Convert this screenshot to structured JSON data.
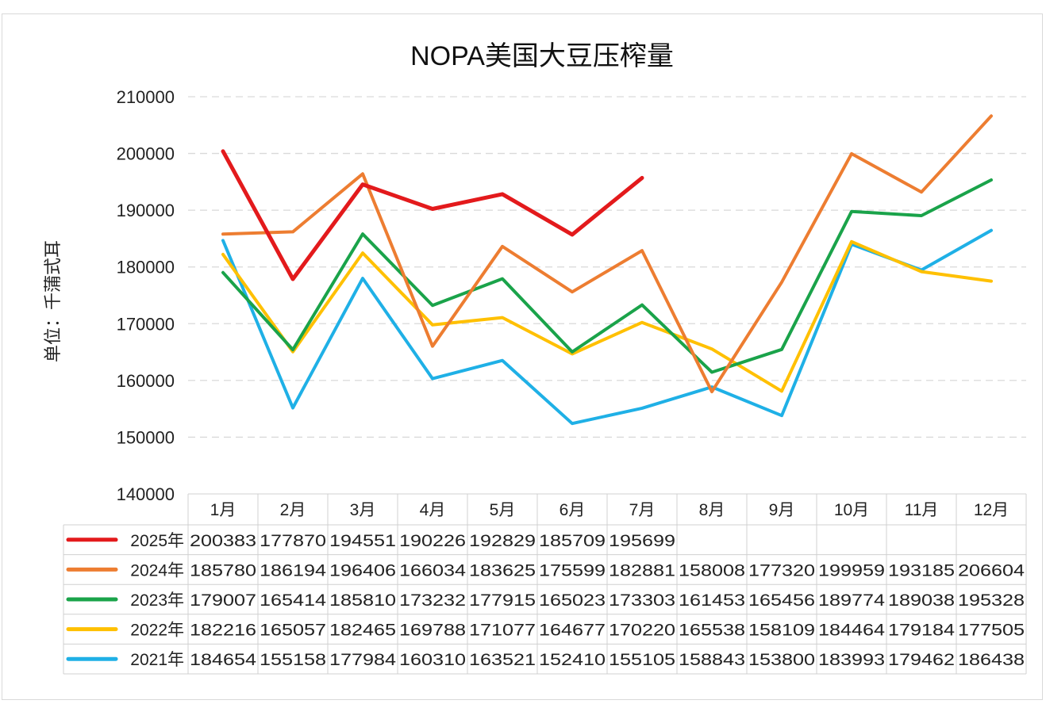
{
  "chart_data": {
    "type": "line",
    "title": "NOPA美国大豆压榨量",
    "ylabel": "单位：千蒲式耳",
    "ylim": [
      140000,
      210000
    ],
    "yticks": [
      "140000",
      "150000",
      "160000",
      "170000",
      "180000",
      "190000",
      "200000",
      "210000"
    ],
    "categories": [
      "1月",
      "2月",
      "3月",
      "4月",
      "5月",
      "6月",
      "7月",
      "8月",
      "9月",
      "10月",
      "11月",
      "12月"
    ],
    "grid": true,
    "legend_position": "data-table",
    "series": [
      {
        "name": "2025年",
        "color": "#e31a1c",
        "values": [
          200383,
          177870,
          194551,
          190226,
          192829,
          185709,
          195699,
          null,
          null,
          null,
          null,
          null
        ]
      },
      {
        "name": "2024年",
        "color": "#ed7d31",
        "values": [
          185780,
          186194,
          196406,
          166034,
          183625,
          175599,
          182881,
          158008,
          177320,
          199959,
          193185,
          206604
        ]
      },
      {
        "name": "2023年",
        "color": "#1aa34a",
        "values": [
          179007,
          165414,
          185810,
          173232,
          177915,
          165023,
          173303,
          161453,
          165456,
          189774,
          189038,
          195328
        ]
      },
      {
        "name": "2022年",
        "color": "#ffc000",
        "values": [
          182216,
          165057,
          182465,
          169788,
          171077,
          164677,
          170220,
          165538,
          158109,
          184464,
          179184,
          177505
        ]
      },
      {
        "name": "2021年",
        "color": "#1fb0e6",
        "values": [
          184654,
          155158,
          177984,
          160310,
          163521,
          152410,
          155105,
          158843,
          153800,
          183993,
          179462,
          186438
        ]
      }
    ]
  }
}
